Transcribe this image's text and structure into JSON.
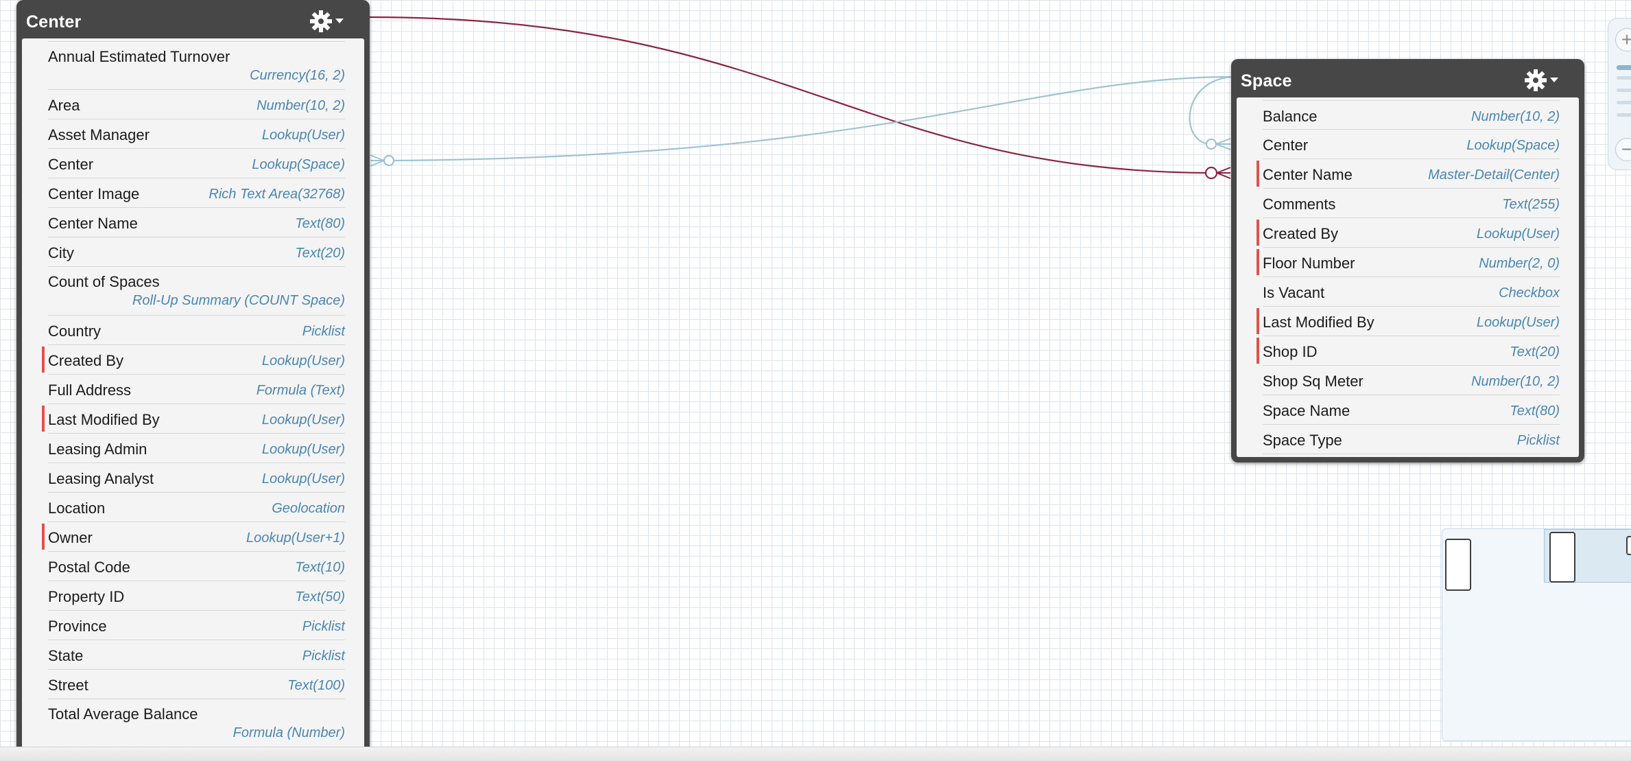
{
  "colors": {
    "master_detail_link": "#8a2541",
    "lookup_link": "#9fc3d2",
    "required_marker": "#e25249",
    "field_type": "#4a86b2",
    "entity_header": "#474747"
  },
  "center": {
    "title": "Center",
    "settings_icon": "gear-icon",
    "menu_icon": "caret-down-icon",
    "fields": [
      {
        "label": "Annual Estimated Turnover",
        "type": "Currency(16, 2)",
        "required": false
      },
      {
        "label": "Area",
        "type": "Number(10, 2)",
        "required": false
      },
      {
        "label": "Asset Manager",
        "type": "Lookup(User)",
        "required": false
      },
      {
        "label": "Center",
        "type": "Lookup(Space)",
        "required": false
      },
      {
        "label": "Center Image",
        "type": "Rich Text Area(32768)",
        "required": false
      },
      {
        "label": "Center Name",
        "type": "Text(80)",
        "required": false
      },
      {
        "label": "City",
        "type": "Text(20)",
        "required": false
      },
      {
        "label": "Count of Spaces",
        "type": "Roll-Up Summary (COUNT Space)",
        "required": false
      },
      {
        "label": "Country",
        "type": "Picklist",
        "required": false
      },
      {
        "label": "Created By",
        "type": "Lookup(User)",
        "required": true
      },
      {
        "label": "Full Address",
        "type": "Formula (Text)",
        "required": false
      },
      {
        "label": "Last Modified By",
        "type": "Lookup(User)",
        "required": true
      },
      {
        "label": "Leasing Admin",
        "type": "Lookup(User)",
        "required": false
      },
      {
        "label": "Leasing Analyst",
        "type": "Lookup(User)",
        "required": false
      },
      {
        "label": "Location",
        "type": "Geolocation",
        "required": false
      },
      {
        "label": "Owner",
        "type": "Lookup(User+1)",
        "required": true
      },
      {
        "label": "Postal Code",
        "type": "Text(10)",
        "required": false
      },
      {
        "label": "Property ID",
        "type": "Text(50)",
        "required": false
      },
      {
        "label": "Province",
        "type": "Picklist",
        "required": false
      },
      {
        "label": "State",
        "type": "Picklist",
        "required": false
      },
      {
        "label": "Street",
        "type": "Text(100)",
        "required": false
      },
      {
        "label": "Total Average Balance",
        "type": "Formula (Number)",
        "required": false
      }
    ]
  },
  "space": {
    "title": "Space",
    "settings_icon": "gear-icon",
    "menu_icon": "caret-down-icon",
    "fields": [
      {
        "label": "Balance",
        "type": "Number(10, 2)",
        "required": false
      },
      {
        "label": "Center",
        "type": "Lookup(Space)",
        "required": false
      },
      {
        "label": "Center Name",
        "type": "Master-Detail(Center)",
        "required": true
      },
      {
        "label": "Comments",
        "type": "Text(255)",
        "required": false
      },
      {
        "label": "Created By",
        "type": "Lookup(User)",
        "required": true
      },
      {
        "label": "Floor Number",
        "type": "Number(2, 0)",
        "required": true
      },
      {
        "label": "Is Vacant",
        "type": "Checkbox",
        "required": false
      },
      {
        "label": "Last Modified By",
        "type": "Lookup(User)",
        "required": true
      },
      {
        "label": "Shop ID",
        "type": "Text(20)",
        "required": true
      },
      {
        "label": "Shop Sq Meter",
        "type": "Number(10, 2)",
        "required": false
      },
      {
        "label": "Space Name",
        "type": "Text(80)",
        "required": false
      },
      {
        "label": "Space Type",
        "type": "Picklist",
        "required": false
      }
    ]
  },
  "zoom": {
    "zoom_in_label": "+",
    "zoom_out_label": "−",
    "level": 1.0
  }
}
